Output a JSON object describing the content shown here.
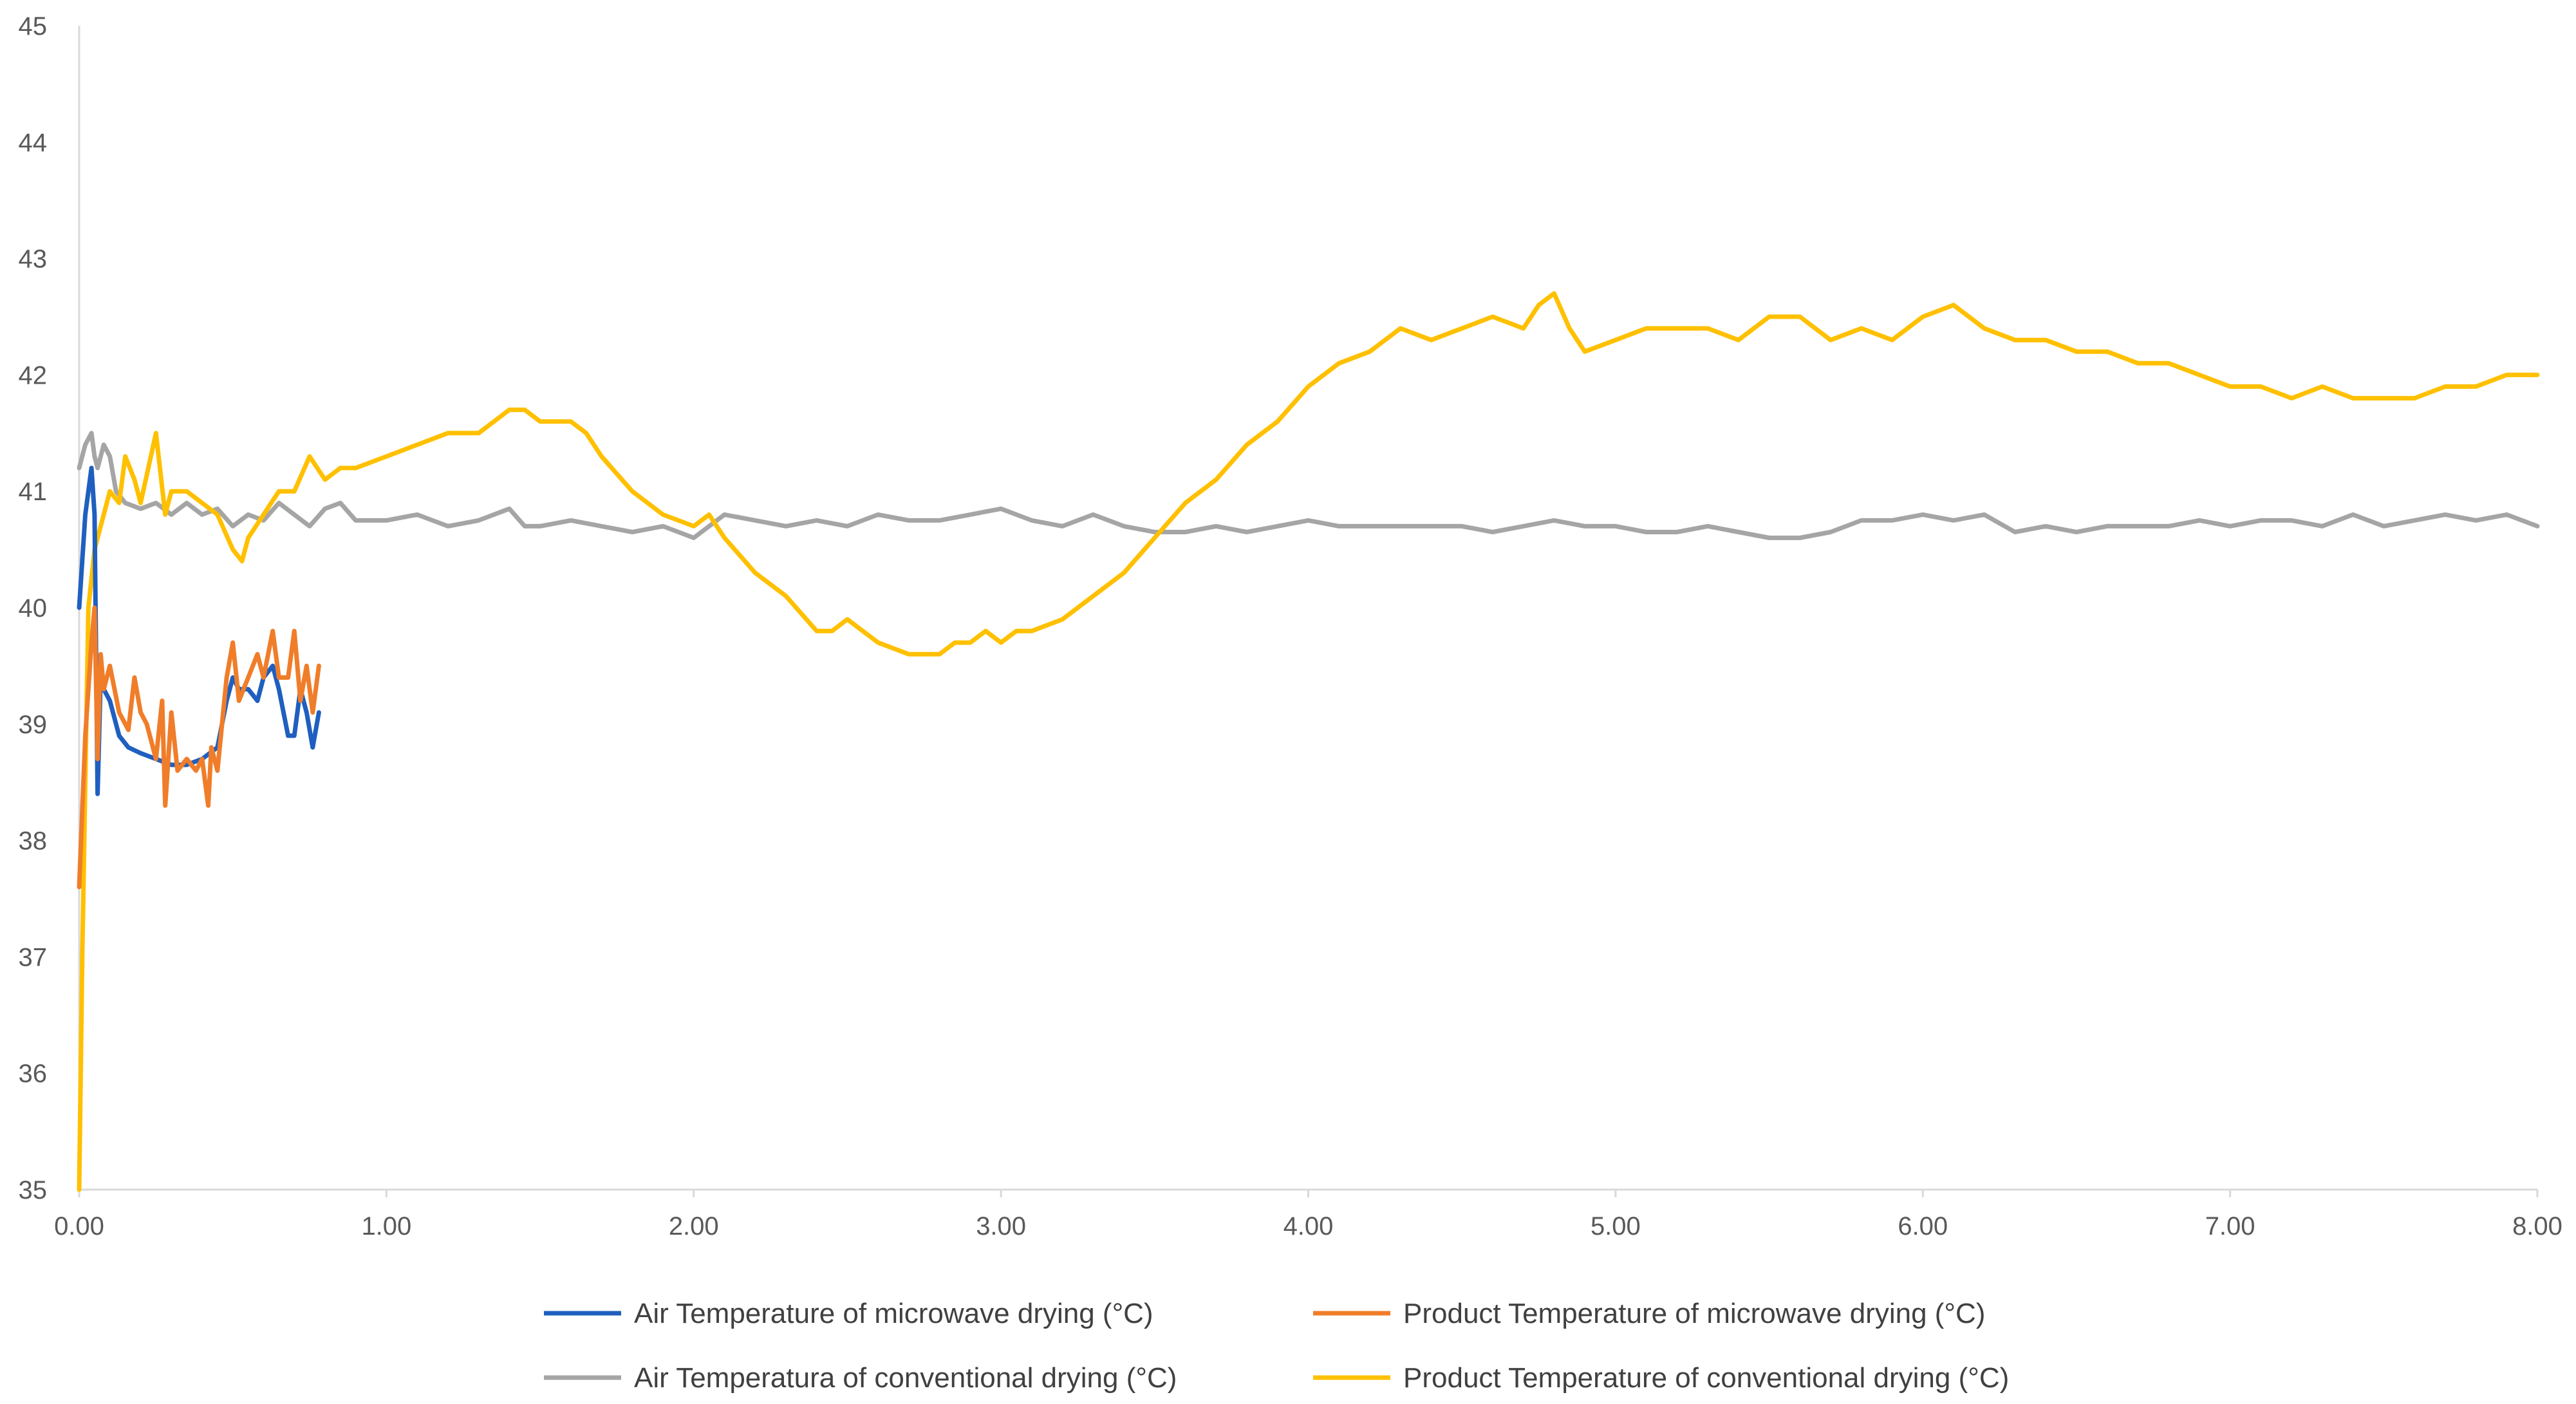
{
  "chart_data": {
    "type": "line",
    "title": "",
    "xlabel": "",
    "ylabel": "",
    "xlim": [
      0,
      8
    ],
    "ylim": [
      35,
      45
    ],
    "x_ticks": [
      "0.00",
      "1.00",
      "2.00",
      "3.00",
      "4.00",
      "5.00",
      "6.00",
      "7.00",
      "8.00"
    ],
    "y_ticks": [
      "35",
      "36",
      "37",
      "38",
      "39",
      "40",
      "41",
      "42",
      "43",
      "44",
      "45"
    ],
    "grid": false,
    "legend_position": "bottom",
    "series": [
      {
        "name": "Air Temperature of microwave drying (°C)",
        "color": "#1F5FBF",
        "x": [
          0.0,
          0.02,
          0.04,
          0.05,
          0.06,
          0.07,
          0.08,
          0.1,
          0.13,
          0.16,
          0.2,
          0.25,
          0.3,
          0.35,
          0.4,
          0.45,
          0.48,
          0.5,
          0.52,
          0.55,
          0.58,
          0.6,
          0.63,
          0.65,
          0.68,
          0.7,
          0.72,
          0.74,
          0.76,
          0.78
        ],
        "y": [
          40.0,
          40.8,
          41.2,
          40.8,
          38.4,
          39.4,
          39.3,
          39.2,
          38.9,
          38.8,
          38.75,
          38.7,
          38.65,
          38.65,
          38.7,
          38.8,
          39.2,
          39.4,
          39.3,
          39.3,
          39.2,
          39.4,
          39.5,
          39.3,
          38.9,
          38.9,
          39.3,
          39.1,
          38.8,
          39.1
        ]
      },
      {
        "name": "Product Temperature of microwave drying (°C)",
        "color": "#F07D2A",
        "x": [
          0.0,
          0.02,
          0.04,
          0.05,
          0.06,
          0.07,
          0.08,
          0.1,
          0.13,
          0.16,
          0.18,
          0.2,
          0.22,
          0.25,
          0.27,
          0.28,
          0.3,
          0.32,
          0.35,
          0.38,
          0.4,
          0.42,
          0.43,
          0.45,
          0.48,
          0.5,
          0.52,
          0.55,
          0.58,
          0.6,
          0.63,
          0.65,
          0.68,
          0.7,
          0.72,
          0.74,
          0.76,
          0.78
        ],
        "y": [
          37.6,
          38.9,
          39.7,
          40.0,
          38.7,
          39.6,
          39.3,
          39.5,
          39.1,
          38.95,
          39.4,
          39.1,
          39.0,
          38.7,
          39.2,
          38.3,
          39.1,
          38.6,
          38.7,
          38.6,
          38.7,
          38.3,
          38.8,
          38.6,
          39.4,
          39.7,
          39.2,
          39.4,
          39.6,
          39.4,
          39.8,
          39.4,
          39.4,
          39.8,
          39.2,
          39.5,
          39.1,
          39.5
        ]
      },
      {
        "name": "Air Temperatura of conventional drying (°C)",
        "color": "#A5A5A5",
        "x": [
          0.0,
          0.02,
          0.04,
          0.05,
          0.06,
          0.08,
          0.1,
          0.12,
          0.15,
          0.2,
          0.25,
          0.3,
          0.35,
          0.4,
          0.45,
          0.5,
          0.55,
          0.6,
          0.65,
          0.7,
          0.75,
          0.8,
          0.85,
          0.9,
          1.0,
          1.1,
          1.2,
          1.3,
          1.4,
          1.45,
          1.5,
          1.6,
          1.7,
          1.8,
          1.9,
          2.0,
          2.1,
          2.2,
          2.3,
          2.4,
          2.5,
          2.6,
          2.7,
          2.8,
          2.9,
          3.0,
          3.1,
          3.2,
          3.3,
          3.4,
          3.5,
          3.6,
          3.7,
          3.8,
          3.9,
          4.0,
          4.1,
          4.2,
          4.3,
          4.4,
          4.5,
          4.6,
          4.7,
          4.8,
          4.9,
          5.0,
          5.1,
          5.2,
          5.3,
          5.4,
          5.5,
          5.6,
          5.7,
          5.8,
          5.9,
          6.0,
          6.1,
          6.2,
          6.3,
          6.4,
          6.5,
          6.6,
          6.7,
          6.8,
          6.9,
          7.0,
          7.1,
          7.2,
          7.3,
          7.4,
          7.5,
          7.6,
          7.7,
          7.8,
          7.9,
          8.0
        ],
        "y": [
          41.2,
          41.4,
          41.5,
          41.3,
          41.2,
          41.4,
          41.3,
          41.0,
          40.9,
          40.85,
          40.9,
          40.8,
          40.9,
          40.8,
          40.85,
          40.7,
          40.8,
          40.75,
          40.9,
          40.8,
          40.7,
          40.85,
          40.9,
          40.75,
          40.75,
          40.8,
          40.7,
          40.75,
          40.85,
          40.7,
          40.7,
          40.75,
          40.7,
          40.65,
          40.7,
          40.6,
          40.8,
          40.75,
          40.7,
          40.75,
          40.7,
          40.8,
          40.75,
          40.75,
          40.8,
          40.85,
          40.75,
          40.7,
          40.8,
          40.7,
          40.65,
          40.65,
          40.7,
          40.65,
          40.7,
          40.75,
          40.7,
          40.7,
          40.7,
          40.7,
          40.7,
          40.65,
          40.7,
          40.75,
          40.7,
          40.7,
          40.65,
          40.65,
          40.7,
          40.65,
          40.6,
          40.6,
          40.65,
          40.75,
          40.75,
          40.8,
          40.75,
          40.8,
          40.65,
          40.7,
          40.65,
          40.7,
          40.7,
          40.7,
          40.75,
          40.7,
          40.75,
          40.75,
          40.7,
          40.8,
          40.7,
          40.75,
          40.8,
          40.75,
          40.8,
          40.7
        ]
      },
      {
        "name": "Product Temperature of conventional drying  (°C)",
        "color": "#FFC000",
        "x": [
          0.0,
          0.01,
          0.02,
          0.03,
          0.05,
          0.07,
          0.1,
          0.13,
          0.15,
          0.18,
          0.2,
          0.25,
          0.28,
          0.3,
          0.35,
          0.4,
          0.45,
          0.5,
          0.53,
          0.55,
          0.6,
          0.65,
          0.7,
          0.75,
          0.8,
          0.85,
          0.9,
          1.0,
          1.1,
          1.2,
          1.3,
          1.4,
          1.45,
          1.5,
          1.55,
          1.6,
          1.65,
          1.7,
          1.8,
          1.9,
          2.0,
          2.05,
          2.1,
          2.2,
          2.3,
          2.4,
          2.45,
          2.5,
          2.55,
          2.6,
          2.7,
          2.8,
          2.85,
          2.9,
          2.95,
          3.0,
          3.05,
          3.1,
          3.2,
          3.3,
          3.4,
          3.5,
          3.6,
          3.7,
          3.8,
          3.9,
          4.0,
          4.1,
          4.2,
          4.3,
          4.4,
          4.5,
          4.6,
          4.7,
          4.75,
          4.8,
          4.85,
          4.9,
          5.0,
          5.1,
          5.2,
          5.3,
          5.4,
          5.5,
          5.6,
          5.7,
          5.8,
          5.9,
          5.95,
          6.0,
          6.1,
          6.2,
          6.3,
          6.4,
          6.5,
          6.6,
          6.7,
          6.8,
          6.9,
          7.0,
          7.1,
          7.2,
          7.3,
          7.4,
          7.5,
          7.6,
          7.7,
          7.8,
          7.9,
          8.0
        ],
        "y": [
          35.0,
          37.0,
          38.5,
          40.0,
          40.5,
          40.7,
          41.0,
          40.9,
          41.3,
          41.1,
          40.9,
          41.5,
          40.8,
          41.0,
          41.0,
          40.9,
          40.8,
          40.5,
          40.4,
          40.6,
          40.8,
          41.0,
          41.0,
          41.3,
          41.1,
          41.2,
          41.2,
          41.3,
          41.4,
          41.5,
          41.5,
          41.7,
          41.7,
          41.6,
          41.6,
          41.6,
          41.5,
          41.3,
          41.0,
          40.8,
          40.7,
          40.8,
          40.6,
          40.3,
          40.1,
          39.8,
          39.8,
          39.9,
          39.8,
          39.7,
          39.6,
          39.6,
          39.7,
          39.7,
          39.8,
          39.7,
          39.8,
          39.8,
          39.9,
          40.1,
          40.3,
          40.6,
          40.9,
          41.1,
          41.4,
          41.6,
          41.9,
          42.1,
          42.2,
          42.4,
          42.3,
          42.4,
          42.5,
          42.4,
          42.6,
          42.7,
          42.4,
          42.2,
          42.3,
          42.4,
          42.4,
          42.4,
          42.3,
          42.5,
          42.5,
          42.3,
          42.4,
          42.3,
          42.4,
          42.5,
          42.6,
          42.4,
          42.3,
          42.3,
          42.2,
          42.2,
          42.1,
          42.1,
          42.0,
          41.9,
          41.9,
          41.8,
          41.9,
          41.8,
          41.8,
          41.8,
          41.9,
          41.9,
          42.0,
          42.0
        ]
      }
    ]
  }
}
